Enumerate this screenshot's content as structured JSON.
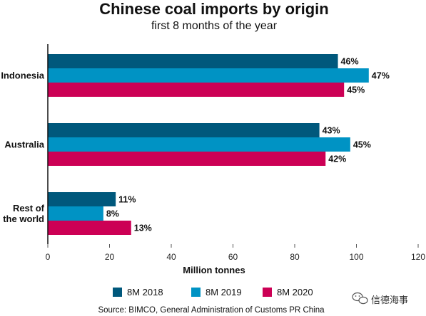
{
  "chart_data": {
    "type": "bar",
    "orientation": "horizontal",
    "title": "Chinese coal imports by origin",
    "subtitle": "first 8 months of the year",
    "xlabel": "Million tonnes",
    "ylabel": "",
    "xlim": [
      0,
      120
    ],
    "x_ticks": [
      0,
      20,
      40,
      60,
      80,
      100,
      120
    ],
    "grid": false,
    "legend_position": "bottom",
    "categories": [
      "Indonesia",
      "Australia",
      "Rest of the world"
    ],
    "category_lines": [
      [
        "Indonesia"
      ],
      [
        "Australia"
      ],
      [
        "Rest of",
        "the world"
      ]
    ],
    "series": [
      {
        "name": "8M 2018",
        "color": "#00587c",
        "values": [
          94,
          88,
          22
        ],
        "labels": [
          "46%",
          "43%",
          "11%"
        ]
      },
      {
        "name": "8M 2019",
        "color": "#0093c4",
        "values": [
          104,
          98,
          18
        ],
        "labels": [
          "47%",
          "45%",
          "8%"
        ]
      },
      {
        "name": "8M 2020",
        "color": "#cc0055",
        "values": [
          96,
          90,
          27
        ],
        "labels": [
          "45%",
          "42%",
          "13%"
        ]
      }
    ],
    "source": "Source: BIMCO, General Administration of Customs PR China"
  },
  "watermark": {
    "text": "信德海事",
    "icon": "wechat-icon"
  }
}
